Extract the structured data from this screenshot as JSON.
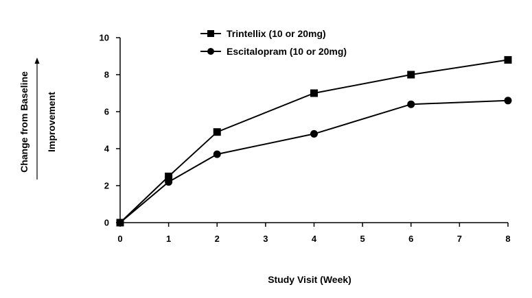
{
  "chart_data": {
    "type": "line",
    "title": "",
    "xlabel": "Study Visit (Week)",
    "ylabel": "Change from Baseline",
    "ylabel_secondary": "Improvement",
    "x": [
      0,
      1,
      2,
      4,
      6,
      8
    ],
    "xticks": [
      "0",
      "1",
      "2",
      "3",
      "4",
      "5",
      "6",
      "7",
      "8"
    ],
    "yticks": [
      "0",
      "2",
      "4",
      "6",
      "8",
      "10"
    ],
    "ylim": [
      0,
      10
    ],
    "xlim": [
      0,
      8
    ],
    "grid": false,
    "legend_position": "top-center",
    "series": [
      {
        "name": "Trintellix (10 or 20mg)",
        "marker": "square",
        "color": "#000000",
        "values": [
          0,
          2.5,
          4.9,
          7.0,
          8.0,
          8.8
        ]
      },
      {
        "name": "Escitalopram (10 or 20mg)",
        "marker": "circle",
        "color": "#000000",
        "values": [
          0,
          2.2,
          3.7,
          4.8,
          6.4,
          6.6
        ]
      }
    ]
  }
}
